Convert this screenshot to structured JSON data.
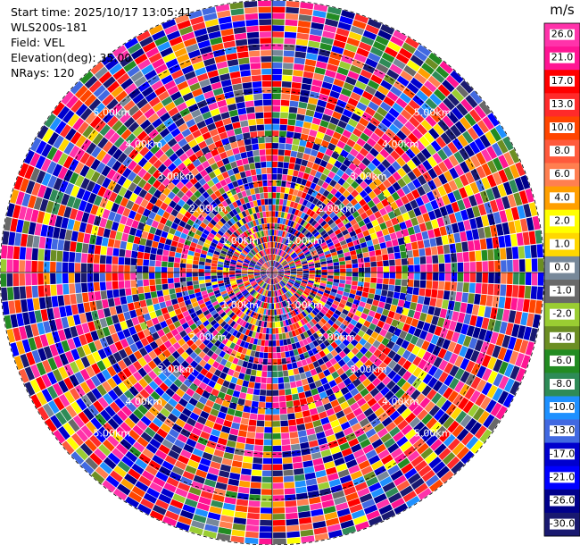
{
  "header": {
    "start_time": "Start time: 2025/10/17 13:05:41",
    "instrument": "WLS200s-181",
    "field": "Field: VEL",
    "elevation": "Elevation(deg): 35.00",
    "nrays": "NRays: 120"
  },
  "chart_data": {
    "type": "heatmap",
    "projection": "polar-ppi",
    "field": "VEL",
    "units": "m/s",
    "nrays": 120,
    "elevation_deg": 35.0,
    "max_range_km": 6.0,
    "range_gates": 44,
    "range_rings_km": [
      1,
      2,
      3,
      4,
      5,
      6
    ],
    "range_ring_labels": [
      "1.00km",
      "2.00km",
      "3.00km",
      "4.00km",
      "5.00km"
    ],
    "colorbar": {
      "unit_label": "m/s",
      "tick_labels": [
        "26.0",
        "21.0",
        "17.0",
        "13.0",
        "10.0",
        "8.0",
        "6.0",
        "4.0",
        "2.0",
        "1.0",
        "0.0",
        "-1.0",
        "-2.0",
        "-4.0",
        "-6.0",
        "-8.0",
        "-10.0",
        "-13.0",
        "-17.0",
        "-21.0",
        "-26.0",
        "-30.0"
      ],
      "bins": [
        {
          "min": 26,
          "max": 30,
          "color": "#ff33aa"
        },
        {
          "min": 21,
          "max": 26,
          "color": "#ff1493"
        },
        {
          "min": 17,
          "max": 21,
          "color": "#ff0000"
        },
        {
          "min": 13,
          "max": 17,
          "color": "#ff2a2a"
        },
        {
          "min": 10,
          "max": 13,
          "color": "#ff4500"
        },
        {
          "min": 8,
          "max": 10,
          "color": "#ff5a3c"
        },
        {
          "min": 6,
          "max": 8,
          "color": "#ff7f50"
        },
        {
          "min": 4,
          "max": 6,
          "color": "#ff9f00"
        },
        {
          "min": 2,
          "max": 4,
          "color": "#ffff00"
        },
        {
          "min": 1,
          "max": 2,
          "color": "#ffd700"
        },
        {
          "min": 0,
          "max": 1,
          "color": "#778899"
        },
        {
          "min": -1,
          "max": 0,
          "color": "#696969"
        },
        {
          "min": -2,
          "max": -1,
          "color": "#9acd32"
        },
        {
          "min": -4,
          "max": -2,
          "color": "#6b8e23"
        },
        {
          "min": -6,
          "max": -4,
          "color": "#228b22"
        },
        {
          "min": -8,
          "max": -6,
          "color": "#2e8b57"
        },
        {
          "min": -10,
          "max": -8,
          "color": "#1e90ff"
        },
        {
          "min": -13,
          "max": -10,
          "color": "#4169e1"
        },
        {
          "min": -17,
          "max": -13,
          "color": "#0000cd"
        },
        {
          "min": -21,
          "max": -17,
          "color": "#0000ff"
        },
        {
          "min": -26,
          "max": -21,
          "color": "#00008b"
        },
        {
          "min": -30,
          "max": -26,
          "color": "#191970"
        }
      ]
    }
  }
}
